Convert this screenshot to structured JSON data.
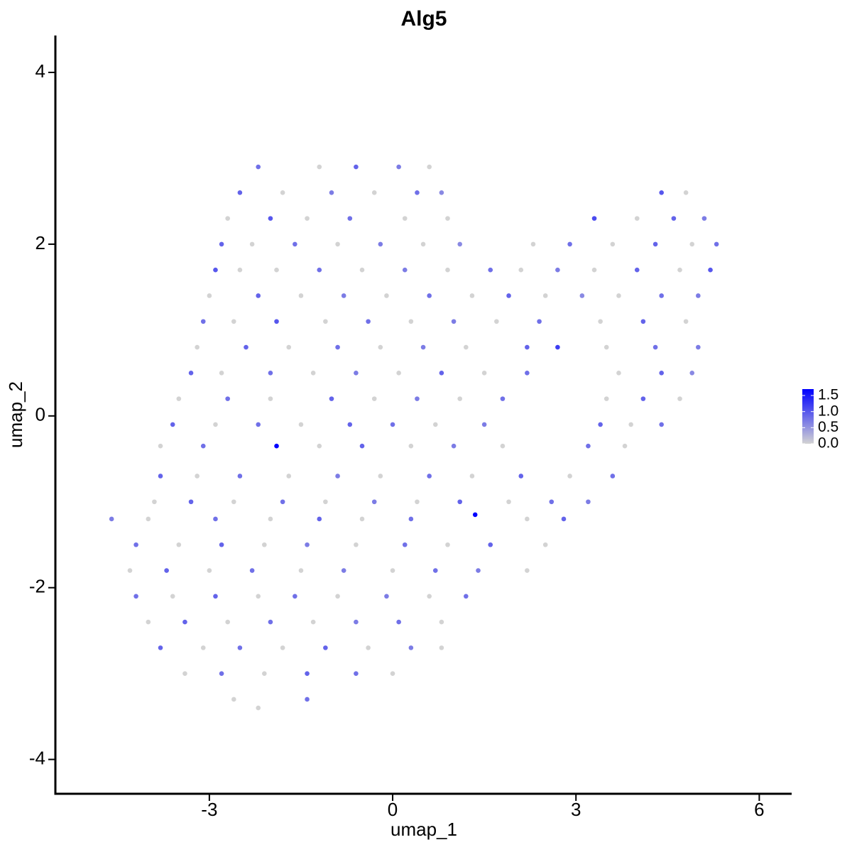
{
  "chart_data": {
    "type": "scatter",
    "title": "Alg5",
    "xlabel": "umap_1",
    "ylabel": "umap_2",
    "x": [
      -2.2,
      -1.2,
      -0.6,
      0.1,
      0.6,
      -2.5,
      -1.8,
      -1.0,
      -0.3,
      0.4,
      0.8,
      4.4,
      4.8,
      -2.7,
      -2.0,
      -1.4,
      -0.7,
      0.2,
      0.9,
      3.3,
      4.0,
      4.6,
      5.1,
      -2.8,
      -2.3,
      -1.6,
      -0.9,
      -0.2,
      0.5,
      1.1,
      2.3,
      2.9,
      3.6,
      4.3,
      4.9,
      5.3,
      -2.9,
      -2.5,
      -1.9,
      -1.2,
      -0.5,
      0.2,
      0.9,
      1.6,
      2.1,
      2.7,
      3.3,
      4.0,
      4.7,
      5.2,
      -3.0,
      -2.2,
      -1.5,
      -0.8,
      -0.1,
      0.6,
      1.3,
      1.9,
      2.5,
      3.1,
      3.7,
      4.4,
      5.0,
      -3.1,
      -2.6,
      -1.9,
      -1.1,
      -0.4,
      0.3,
      1.0,
      1.7,
      2.4,
      3.4,
      4.1,
      4.8,
      -3.2,
      -2.4,
      -1.7,
      -0.9,
      -0.2,
      0.5,
      1.2,
      2.2,
      2.7,
      3.5,
      4.3,
      5.0,
      -3.3,
      -2.8,
      -2.0,
      -1.3,
      -0.6,
      0.1,
      0.8,
      1.5,
      2.2,
      3.7,
      4.4,
      4.9,
      -3.5,
      -2.7,
      -2.0,
      -1.0,
      -0.3,
      0.4,
      1.1,
      1.8,
      3.5,
      4.1,
      4.7,
      -3.6,
      -2.9,
      -2.2,
      -1.5,
      -0.7,
      0.0,
      0.7,
      1.5,
      3.4,
      3.9,
      4.4,
      -3.8,
      -3.1,
      -1.9,
      -1.2,
      -0.5,
      0.3,
      1.0,
      1.8,
      3.2,
      3.8,
      -3.8,
      -3.2,
      -2.5,
      -1.7,
      -0.9,
      -0.2,
      0.6,
      1.3,
      2.1,
      2.9,
      3.6,
      -3.9,
      -3.3,
      -2.6,
      -1.8,
      -1.1,
      -0.3,
      0.4,
      1.1,
      1.9,
      2.6,
      3.2,
      -4.6,
      -4.0,
      -2.9,
      -2.0,
      -1.2,
      -0.5,
      0.3,
      1.35,
      2.2,
      2.8,
      -4.2,
      -3.5,
      -2.8,
      -2.1,
      -1.4,
      -0.6,
      0.2,
      0.9,
      1.6,
      2.5,
      -4.3,
      -3.7,
      -3.0,
      -2.3,
      -1.5,
      -0.8,
      0.0,
      0.7,
      1.4,
      2.2,
      -4.2,
      -3.6,
      -2.9,
      -2.2,
      -1.6,
      -0.9,
      -0.1,
      0.6,
      1.2,
      -4.0,
      -3.4,
      -2.7,
      -2.0,
      -1.3,
      -0.6,
      0.1,
      0.8,
      -3.8,
      -3.1,
      -2.5,
      -1.8,
      -1.1,
      -0.4,
      0.3,
      0.8,
      -3.4,
      -2.8,
      -2.1,
      -1.4,
      -0.6,
      0.0,
      -2.6,
      -2.2,
      -1.4
    ],
    "values": [
      2.9,
      2.9,
      2.9,
      2.9,
      2.9,
      2.6,
      2.6,
      2.6,
      2.6,
      2.6,
      2.6,
      2.6,
      2.6,
      2.3,
      2.3,
      2.3,
      2.3,
      2.3,
      2.3,
      2.3,
      2.3,
      2.3,
      2.3,
      2.0,
      2.0,
      2.0,
      2.0,
      2.0,
      2.0,
      2.0,
      2.0,
      2.0,
      2.0,
      2.0,
      2.0,
      2.0,
      1.7,
      1.7,
      1.7,
      1.7,
      1.7,
      1.7,
      1.7,
      1.7,
      1.7,
      1.7,
      1.7,
      1.7,
      1.7,
      1.7,
      1.4,
      1.4,
      1.4,
      1.4,
      1.4,
      1.4,
      1.4,
      1.4,
      1.4,
      1.4,
      1.4,
      1.4,
      1.4,
      1.1,
      1.1,
      1.1,
      1.1,
      1.1,
      1.1,
      1.1,
      1.1,
      1.1,
      1.1,
      1.1,
      1.1,
      0.8,
      0.8,
      0.8,
      0.8,
      0.8,
      0.8,
      0.8,
      0.8,
      0.8,
      0.8,
      0.8,
      0.8,
      0.5,
      0.5,
      0.5,
      0.5,
      0.5,
      0.5,
      0.5,
      0.5,
      0.5,
      0.5,
      0.5,
      0.5,
      0.2,
      0.2,
      0.2,
      0.2,
      0.2,
      0.2,
      0.2,
      0.2,
      0.2,
      0.2,
      0.2,
      -0.1,
      -0.1,
      -0.1,
      -0.1,
      -0.1,
      -0.1,
      -0.1,
      -0.1,
      -0.1,
      -0.1,
      -0.1,
      -0.35,
      -0.35,
      -0.35,
      -0.35,
      -0.35,
      -0.35,
      -0.35,
      -0.35,
      -0.35,
      -0.35,
      -0.7,
      -0.7,
      -0.7,
      -0.7,
      -0.7,
      -0.7,
      -0.7,
      -0.7,
      -0.7,
      -0.7,
      -0.7,
      -1.0,
      -1.0,
      -1.0,
      -1.0,
      -1.0,
      -1.0,
      -1.0,
      -1.0,
      -1.0,
      -1.0,
      -1.0,
      -1.2,
      -1.2,
      -1.2,
      -1.2,
      -1.2,
      -1.2,
      -1.2,
      -1.15,
      -1.2,
      -1.2,
      -1.5,
      -1.5,
      -1.5,
      -1.5,
      -1.5,
      -1.5,
      -1.5,
      -1.5,
      -1.5,
      -1.5,
      -1.8,
      -1.8,
      -1.8,
      -1.8,
      -1.8,
      -1.8,
      -1.8,
      -1.8,
      -1.8,
      -1.8,
      -2.1,
      -2.1,
      -2.1,
      -2.1,
      -2.1,
      -2.1,
      -2.1,
      -2.1,
      -2.1,
      -2.4,
      -2.4,
      -2.4,
      -2.4,
      -2.4,
      -2.4,
      -2.4,
      -2.4,
      -2.7,
      -2.7,
      -2.7,
      -2.7,
      -2.7,
      -2.7,
      -2.7,
      -2.7,
      -3.0,
      -3.0,
      -3.0,
      -3.0,
      -3.0,
      -3.0,
      -3.3,
      -3.4,
      -3.3
    ],
    "expression": [
      0.8,
      0,
      0.9,
      0.7,
      0,
      0.9,
      0,
      0.7,
      0,
      0.8,
      0.6,
      1.0,
      0,
      0,
      1.0,
      0,
      0.8,
      0,
      0,
      1.1,
      0,
      0.9,
      0.7,
      0.9,
      0,
      0.8,
      0,
      0.7,
      0,
      0.6,
      0,
      0.8,
      0,
      0.9,
      0,
      0.8,
      1.0,
      0,
      0,
      0.8,
      0,
      0.7,
      0,
      0.8,
      0,
      0.7,
      0,
      0.9,
      0,
      1.0,
      0,
      0.9,
      0,
      0.7,
      0,
      0.8,
      0,
      0.9,
      0,
      0.6,
      0,
      0.8,
      0.7,
      0.8,
      0,
      1.0,
      0,
      0.8,
      0,
      0.7,
      0,
      0.8,
      0,
      0.9,
      0,
      0,
      0.9,
      0,
      0.8,
      0,
      0.7,
      0,
      0.9,
      1.2,
      0,
      0.8,
      0.7,
      0.9,
      0,
      0.8,
      0,
      0.7,
      0,
      0.9,
      0,
      0.8,
      0,
      0.9,
      0.6,
      0,
      0.8,
      0,
      0.9,
      0,
      0.7,
      0,
      0.8,
      0,
      0.9,
      0,
      0.9,
      0,
      0.8,
      0,
      0.9,
      0.8,
      0,
      0.7,
      0.9,
      0,
      0.8,
      0,
      0.8,
      1.7,
      0,
      0.9,
      0,
      0.7,
      0,
      0.8,
      0,
      0.9,
      0,
      0.8,
      0,
      0.7,
      0,
      0.8,
      0,
      0.9,
      0,
      0.8,
      0,
      0.9,
      0,
      0.8,
      0,
      0.7,
      0,
      0.9,
      0,
      0.8,
      0.7,
      0.7,
      0,
      0.8,
      0,
      0.9,
      0,
      0.8,
      1.7,
      0,
      0.9,
      0.8,
      0,
      0.9,
      0,
      0.7,
      0,
      0.8,
      0,
      0.9,
      0,
      0,
      0.9,
      0,
      0.8,
      0,
      0.7,
      0,
      0.8,
      0.7,
      0,
      0.8,
      0,
      0.9,
      0,
      0.8,
      0,
      0.7,
      0,
      0.8,
      0,
      0.9,
      0,
      0.8,
      0,
      0.7,
      0.8,
      0,
      0.9,
      0,
      0.8,
      0,
      0.9,
      0,
      0.7,
      0,
      0,
      0.8,
      0,
      0.9,
      0.8,
      0,
      0,
      0,
      0.8
    ],
    "xlim": [
      -5.52,
      6.53
    ],
    "ylim": [
      -4.4,
      4.43
    ],
    "xticks": [
      -3,
      0,
      3,
      6
    ],
    "yticks": [
      -4,
      -2,
      0,
      2,
      4
    ],
    "colorbar": {
      "low": "#d3d3d3",
      "high": "#0000ff",
      "lim": [
        0,
        1.7
      ],
      "ticks": [
        {
          "value": 0,
          "label": "0.0"
        },
        {
          "value": 0.5,
          "label": "0.5"
        },
        {
          "value": 1,
          "label": "1.0"
        },
        {
          "value": 1.5,
          "label": "1.5"
        }
      ]
    }
  }
}
